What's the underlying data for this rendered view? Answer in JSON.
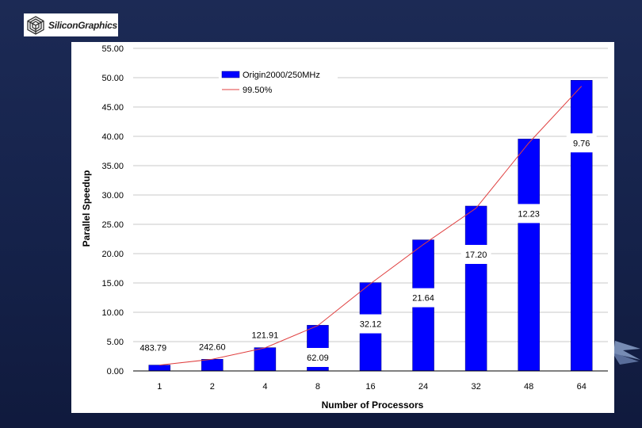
{
  "logo": {
    "name": "SiliconGraphics",
    "icon": "sgi-cube-icon"
  },
  "chart_data": {
    "type": "bar",
    "title": "",
    "xlabel": "Number of Processors",
    "ylabel": "Parallel Speedup",
    "ylim": [
      0,
      55
    ],
    "yticks": [
      "0.00",
      "5.00",
      "10.00",
      "15.00",
      "20.00",
      "25.00",
      "30.00",
      "35.00",
      "40.00",
      "45.00",
      "50.00",
      "55.00"
    ],
    "categories": [
      "1",
      "2",
      "4",
      "8",
      "16",
      "24",
      "32",
      "48",
      "64"
    ],
    "series": [
      {
        "name": "Origin2000/250MHz",
        "type": "bar",
        "color": "#0000ff",
        "values": [
          1.0,
          1.99,
          3.97,
          7.79,
          15.06,
          22.35,
          28.11,
          39.54,
          49.56
        ]
      },
      {
        "name": "99.50%",
        "type": "line",
        "color": "#e04040",
        "values": [
          1.0,
          1.99,
          3.94,
          7.72,
          14.88,
          21.55,
          27.75,
          38.87,
          48.55
        ]
      }
    ],
    "data_labels": [
      "483.79",
      "242.60",
      "121.91",
      "62.09",
      "32.12",
      "21.64",
      "17.20",
      "12.23",
      "9.76"
    ],
    "legend": {
      "placement": "top-left"
    }
  }
}
